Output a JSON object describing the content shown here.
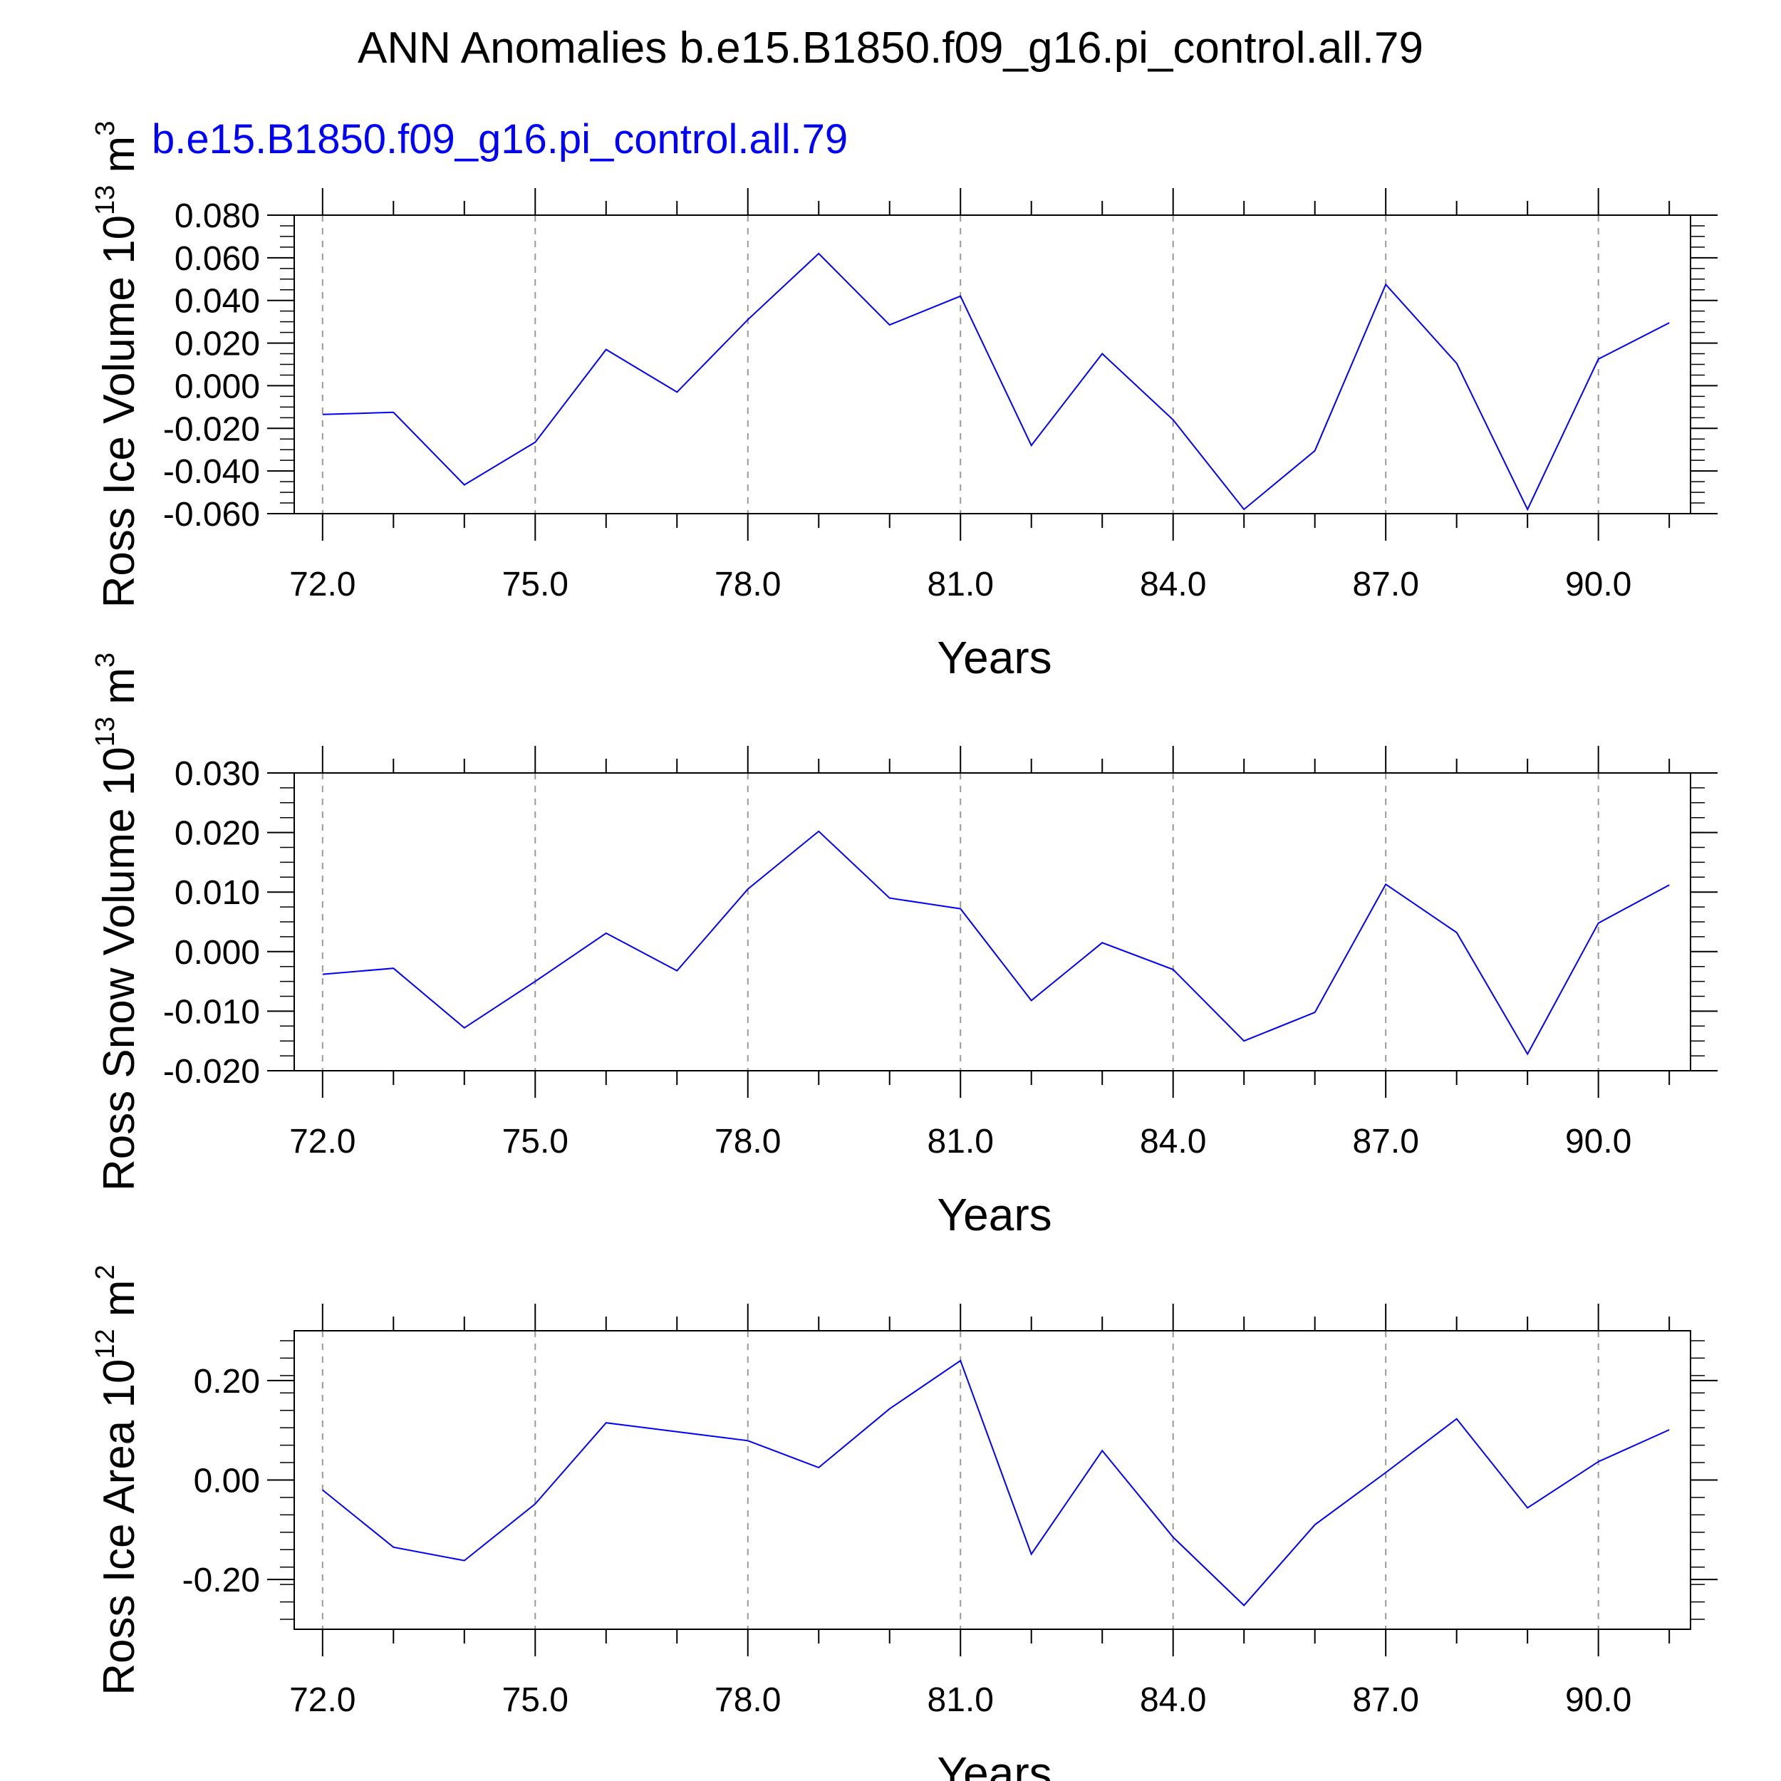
{
  "figure": {
    "title": "ANN Anomalies b.e15.B1850.f09_g16.pi_control.all.79",
    "legend_label": "b.e15.B1850.f09_g16.pi_control.all.79"
  },
  "colors": {
    "series": "#0000ff",
    "legend_text": "#0000ff",
    "axes": "#000000",
    "grid": "#999999"
  },
  "chart_data": [
    {
      "type": "line",
      "title": "",
      "xlabel": "Years",
      "ylabel_main": "Ross Ice Volume 10",
      "ylabel_sup": "13",
      "ylabel_unit": " m",
      "ylabel_unit_sup": "3",
      "xlim": [
        71.6,
        91.3
      ],
      "ylim": [
        -0.06,
        0.08
      ],
      "x_ticks": [
        72,
        75,
        78,
        81,
        84,
        87,
        90
      ],
      "x_tick_labels": [
        "72.0",
        "75.0",
        "78.0",
        "81.0",
        "84.0",
        "87.0",
        "90.0"
      ],
      "y_ticks": [
        -0.06,
        -0.04,
        -0.02,
        0.0,
        0.02,
        0.04,
        0.06,
        0.08
      ],
      "y_tick_labels": [
        "-0.060",
        "-0.040",
        "-0.020",
        "0.000",
        "0.020",
        "0.040",
        "0.060",
        "0.080"
      ],
      "grid": "vertical dashed at major x ticks",
      "series": [
        {
          "x": [
            72,
            73,
            74,
            75,
            76,
            77,
            78,
            79,
            80,
            81,
            82,
            83,
            84,
            85,
            86,
            87,
            88,
            89,
            90,
            91
          ],
          "values": [
            -0.0135,
            -0.0125,
            -0.0465,
            -0.0265,
            0.017,
            -0.003,
            0.031,
            0.062,
            0.0285,
            0.042,
            -0.028,
            0.015,
            -0.016,
            -0.058,
            -0.0305,
            0.0475,
            0.0105,
            -0.058,
            0.0125,
            0.0295
          ]
        }
      ]
    },
    {
      "type": "line",
      "title": "",
      "xlabel": "Years",
      "ylabel_main": "Ross Snow Volume 10",
      "ylabel_sup": "13",
      "ylabel_unit": " m",
      "ylabel_unit_sup": "3",
      "xlim": [
        71.6,
        91.3
      ],
      "ylim": [
        -0.02,
        0.03
      ],
      "x_ticks": [
        72,
        75,
        78,
        81,
        84,
        87,
        90
      ],
      "x_tick_labels": [
        "72.0",
        "75.0",
        "78.0",
        "81.0",
        "84.0",
        "87.0",
        "90.0"
      ],
      "y_ticks": [
        -0.02,
        -0.01,
        0.0,
        0.01,
        0.02,
        0.03
      ],
      "y_tick_labels": [
        "-0.020",
        "-0.010",
        "0.000",
        "0.010",
        "0.020",
        "0.030"
      ],
      "grid": "vertical dashed at major x ticks",
      "series": [
        {
          "x": [
            72,
            73,
            74,
            75,
            76,
            77,
            78,
            79,
            80,
            81,
            82,
            83,
            84,
            85,
            86,
            87,
            88,
            89,
            90,
            91
          ],
          "values": [
            -0.0038,
            -0.0028,
            -0.0128,
            -0.005,
            0.0031,
            -0.0032,
            0.0105,
            0.0202,
            0.009,
            0.0072,
            -0.0082,
            0.0015,
            -0.003,
            -0.015,
            -0.0102,
            0.0113,
            0.0032,
            -0.0172,
            0.0048,
            0.0112
          ]
        }
      ]
    },
    {
      "type": "line",
      "title": "",
      "xlabel": "Years",
      "ylabel_main": "Ross Ice Area 10",
      "ylabel_sup": "12",
      "ylabel_unit": " m",
      "ylabel_unit_sup": "2",
      "xlim": [
        71.6,
        91.3
      ],
      "ylim": [
        -0.3,
        0.3
      ],
      "x_ticks": [
        72,
        75,
        78,
        81,
        84,
        87,
        90
      ],
      "x_tick_labels": [
        "72.0",
        "75.0",
        "78.0",
        "81.0",
        "84.0",
        "87.0",
        "90.0"
      ],
      "y_ticks": [
        -0.2,
        0.0,
        0.2
      ],
      "y_tick_labels": [
        "-0.20",
        "0.00",
        "0.20"
      ],
      "grid": "vertical dashed at major x ticks",
      "series": [
        {
          "x": [
            72,
            73,
            74,
            75,
            76,
            77,
            78,
            79,
            80,
            81,
            82,
            83,
            84,
            85,
            86,
            87,
            88,
            89,
            90,
            91
          ],
          "values": [
            -0.02,
            -0.135,
            -0.162,
            -0.048,
            0.115,
            0.097,
            0.079,
            0.025,
            0.143,
            0.24,
            -0.149,
            0.059,
            -0.115,
            -0.252,
            -0.09,
            0.015,
            0.123,
            -0.056,
            0.037,
            0.101
          ]
        }
      ]
    }
  ]
}
